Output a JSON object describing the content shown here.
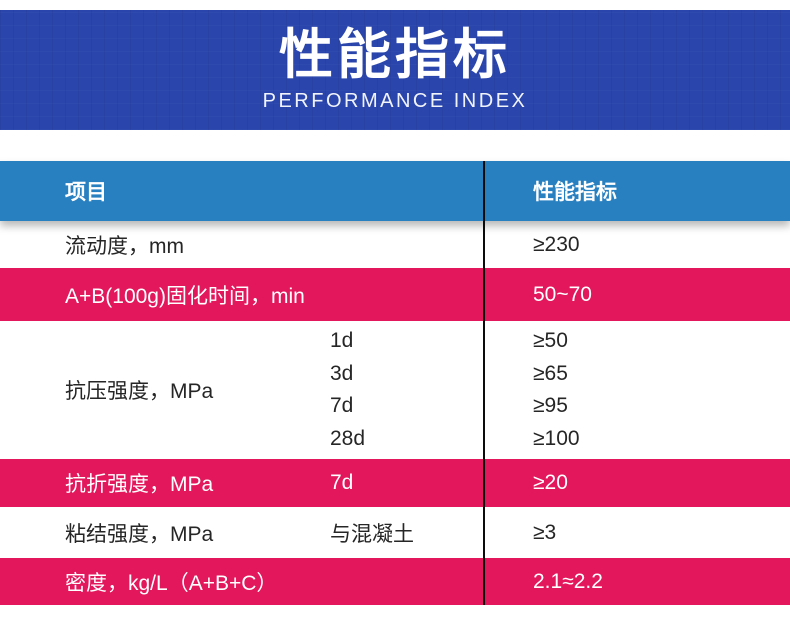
{
  "banner": {
    "title": "性能指标",
    "subtitle": "PERFORMANCE INDEX"
  },
  "colors": {
    "banner_blue": "#2a46ad",
    "header_blue": "#2980c1",
    "accent_pink": "#e2175c",
    "divider_black": "#0c0c0c",
    "text_dark": "#262626",
    "text_white": "#ffffff"
  },
  "table": {
    "header": {
      "col1": "项目",
      "col2": "性能指标"
    },
    "rows": [
      {
        "name": "流动度，mm",
        "sub": "",
        "value": "≥230"
      },
      {
        "name": "A+B(100g)固化时间，min",
        "sub": "",
        "value": "50~70"
      },
      {
        "name": "抗压强度，MPa",
        "sub_lines": [
          "1d",
          "3d",
          "7d",
          "28d"
        ],
        "value_lines": [
          "≥50",
          "≥65",
          "≥95",
          "≥100"
        ]
      },
      {
        "name": "抗折强度，MPa",
        "sub": "7d",
        "value": "≥20"
      },
      {
        "name": "粘结强度，MPa",
        "sub": "与混凝土",
        "value": "≥3"
      },
      {
        "name": "密度，kg/L（A+B+C）",
        "sub": "",
        "value": "2.1≈2.2"
      }
    ]
  }
}
